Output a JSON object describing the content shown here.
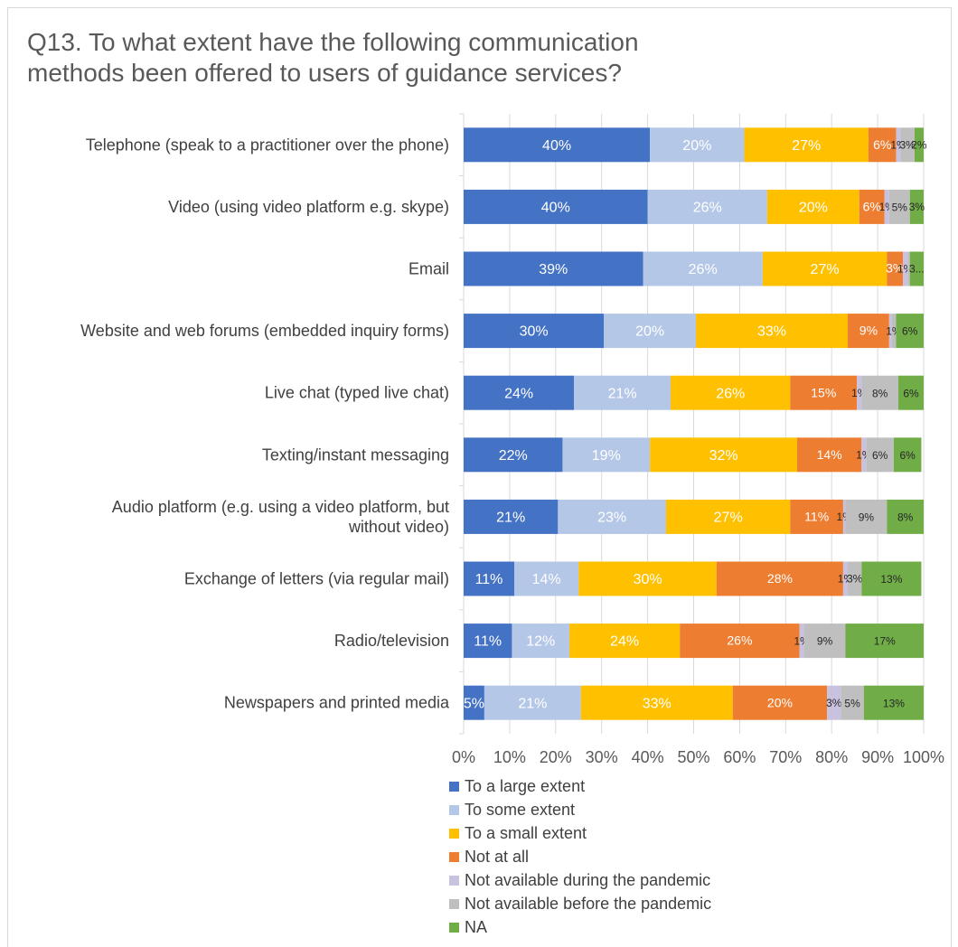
{
  "chart_data": {
    "type": "bar",
    "orientation": "horizontal",
    "stacked": "percent",
    "title": "Q13. To what extent have the following communication methods been offered to users of guidance services?",
    "categories": [
      "Telephone (speak to a practitioner over the phone)",
      "Video (using video platform e.g. skype)",
      "Email",
      "Website and web forums (embedded inquiry forms)",
      "Live chat (typed live chat)",
      "Texting/instant messaging",
      "Audio platform (e.g. using a video platform, but without video)",
      "Exchange of letters (via regular mail)",
      "Radio/television",
      "Newspapers and printed media"
    ],
    "xlim": [
      0,
      100
    ],
    "xticks": [
      "0%",
      "10%",
      "20%",
      "30%",
      "40%",
      "50%",
      "60%",
      "70%",
      "80%",
      "90%",
      "100%"
    ],
    "grid": true,
    "legend_position": "bottom",
    "series": [
      {
        "name": "To a large extent",
        "color": "#4472c4",
        "values": [
          40.5,
          40,
          39,
          30.5,
          24,
          21.5,
          20.5,
          11,
          10.5,
          4.5
        ],
        "labels": [
          "40%",
          "40%",
          "39%",
          "30%",
          "24%",
          "22%",
          "21%",
          "11%",
          "11%",
          "5%"
        ]
      },
      {
        "name": "To some extent",
        "color": "#b4c7e7",
        "values": [
          20.5,
          26,
          26,
          20,
          21,
          19,
          23.5,
          14,
          12.5,
          21
        ],
        "labels": [
          "20%",
          "26%",
          "26%",
          "20%",
          "21%",
          "19%",
          "23%",
          "14%",
          "12%",
          "21%"
        ]
      },
      {
        "name": "To a small extent",
        "color": "#ffc000",
        "values": [
          27,
          20,
          27,
          33,
          26,
          32,
          27,
          30,
          24,
          33
        ],
        "labels": [
          "27%",
          "20%",
          "27%",
          "33%",
          "26%",
          "32%",
          "27%",
          "30%",
          "24%",
          "33%"
        ]
      },
      {
        "name": "Not at all",
        "color": "#ed7d31",
        "values": [
          6,
          5.5,
          3.5,
          9,
          14.5,
          14,
          11.5,
          27.5,
          26,
          20.5
        ],
        "labels": [
          "6%",
          "6%",
          "3%",
          "9%",
          "15%",
          "14%",
          "11%",
          "28%",
          "26%",
          "20%"
        ]
      },
      {
        "name": "Not available during the pandemic",
        "color": "#c9c1e0",
        "values": [
          1,
          1,
          1,
          0.5,
          1,
          1,
          0.5,
          1,
          1,
          3
        ],
        "labels": [
          "1%",
          "1%",
          "1%",
          "",
          "1%",
          "1%",
          "1%",
          "1%",
          "1%",
          "3%"
        ]
      },
      {
        "name": "Not available before the pandemic",
        "color": "#bfbfbf",
        "values": [
          3,
          4.5,
          0.5,
          1,
          8,
          6,
          9,
          3,
          9,
          5
        ],
        "labels": [
          "3%",
          "5%",
          "",
          "1%",
          "8%",
          "6%",
          "9%",
          "3%",
          "9%",
          "5%"
        ]
      },
      {
        "name": "NA",
        "color": "#70ad47",
        "values": [
          2,
          3,
          3,
          6,
          5.5,
          6,
          8,
          13,
          17,
          13
        ],
        "labels": [
          "2%",
          "3%",
          "3...",
          "6%",
          "6%",
          "6%",
          "8%",
          "13%",
          "17%",
          "13%"
        ]
      }
    ]
  }
}
